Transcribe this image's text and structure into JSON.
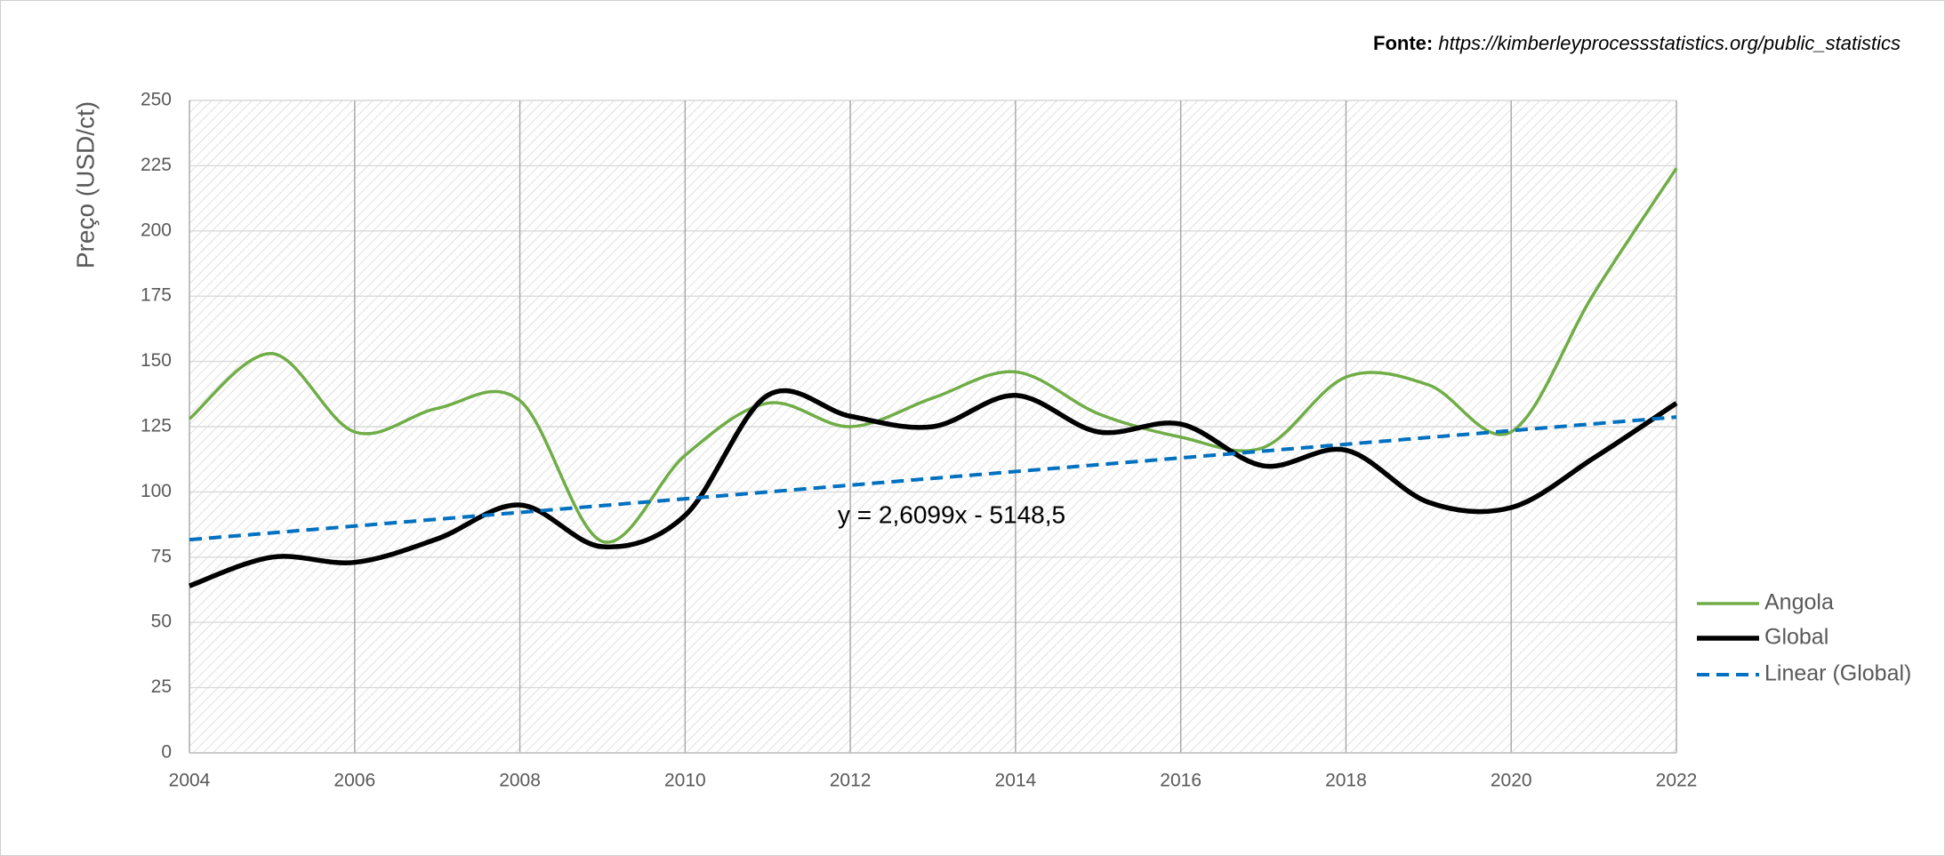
{
  "chart_data": {
    "type": "line",
    "source_label": "Fonte:",
    "source": "https://kimberleyprocessstatistics.org/public_statistics",
    "y_label": "Preço (USD/ct)",
    "annotation": "y = 2,6099x - 5148,5",
    "x": [
      2004,
      2005,
      2006,
      2007,
      2008,
      2009,
      2010,
      2011,
      2012,
      2013,
      2014,
      2015,
      2016,
      2017,
      2018,
      2019,
      2020,
      2021,
      2022
    ],
    "series": [
      {
        "name": "Angola",
        "color": "#70ad47",
        "values": [
          128,
          153,
          123,
          132,
          135,
          81,
          114,
          134,
          125,
          136,
          146,
          130,
          121,
          117,
          144,
          141,
          123,
          176,
          224
        ]
      },
      {
        "name": "Global",
        "color": "#000000",
        "values": [
          64,
          75,
          73,
          82,
          95,
          79,
          91,
          137,
          129,
          125,
          137,
          123,
          126,
          110,
          116,
          96,
          94,
          113,
          134
        ]
      },
      {
        "name": "Linear (Global)",
        "color": "#0070c0",
        "dashed": true,
        "x": [
          2004,
          2022
        ],
        "values": [
          81.7,
          128.7
        ]
      }
    ],
    "xlim": [
      2004,
      2022
    ],
    "xticks": [
      2004,
      2006,
      2008,
      2010,
      2012,
      2014,
      2016,
      2018,
      2020,
      2022
    ],
    "ylim": [
      0,
      250
    ],
    "yticks": [
      0,
      25,
      50,
      75,
      100,
      125,
      150,
      175,
      200,
      225,
      250
    ],
    "grid": true,
    "smooth": true,
    "legend": "right"
  }
}
